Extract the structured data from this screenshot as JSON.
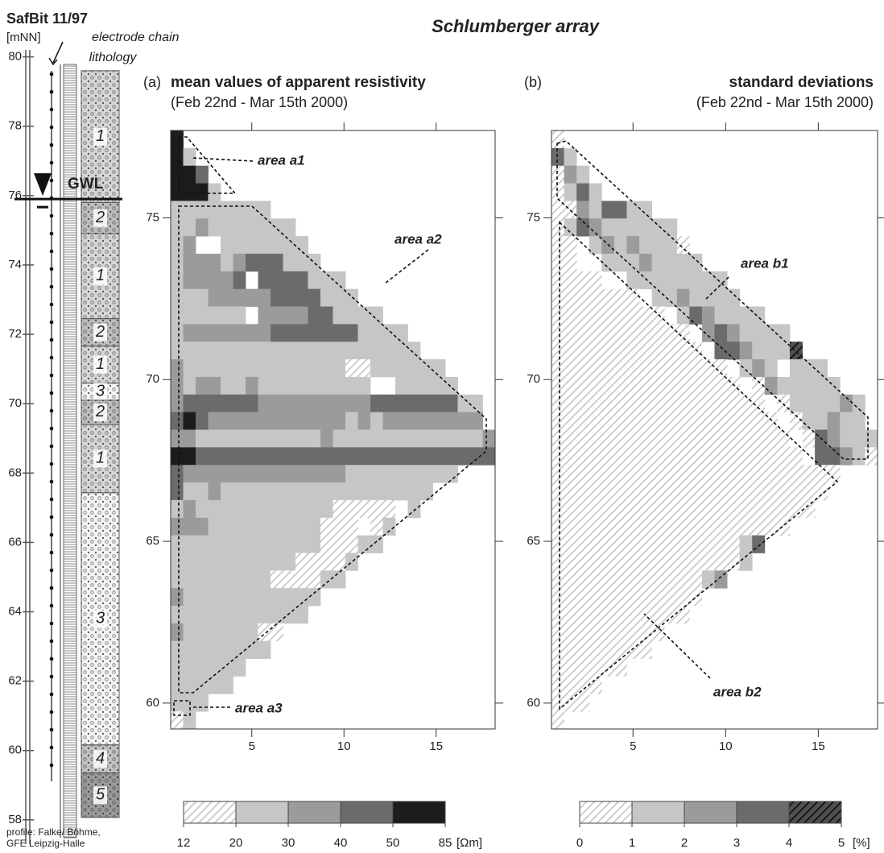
{
  "chart_data": {
    "type": "heatmap",
    "title": "Schlumberger array",
    "log": {
      "title": "SafBit 11/97",
      "unit": "[mNN]",
      "electrode_label": "electrode chain",
      "lithology_label": "lithology",
      "ylim": [
        57.3,
        80.2
      ],
      "yticks": [
        58,
        60,
        62,
        64,
        66,
        68,
        70,
        72,
        74,
        76,
        78,
        80
      ],
      "gwl": {
        "label": "GWL",
        "depth": 75.9
      },
      "layers": [
        {
          "label": "1",
          "top": 79.6,
          "bottom": 75.8,
          "color": "#d6d6d6"
        },
        {
          "label": "2",
          "top": 75.8,
          "bottom": 74.9,
          "color": "#bdbdbd"
        },
        {
          "label": "1",
          "top": 74.9,
          "bottom": 72.45,
          "color": "#d6d6d6"
        },
        {
          "label": "2",
          "top": 72.45,
          "bottom": 71.66,
          "color": "#bdbdbd"
        },
        {
          "label": "1",
          "top": 71.66,
          "bottom": 70.59,
          "color": "#d6d6d6"
        },
        {
          "label": "3",
          "top": 70.59,
          "bottom": 70.1,
          "color": "#f4f4f4"
        },
        {
          "label": "2",
          "top": 70.1,
          "bottom": 69.4,
          "color": "#bdbdbd"
        },
        {
          "label": "1",
          "top": 69.4,
          "bottom": 67.43,
          "color": "#d6d6d6"
        },
        {
          "label": "3",
          "top": 67.43,
          "bottom": 60.16,
          "color": "#f4f4f4"
        },
        {
          "label": "4",
          "top": 60.16,
          "bottom": 59.35,
          "color": "#c2c2c2"
        },
        {
          "label": "5",
          "top": 59.35,
          "bottom": 58.07,
          "color": "#9a9a9a"
        }
      ],
      "credit": [
        "profile: Falke/ Böhme,",
        "GFE Leipzig-Halle"
      ]
    },
    "panels": [
      {
        "label": "(a)",
        "title": "mean values of apparent resistivity",
        "subtitle": "(Feb 22nd - Mar 15th 2000)",
        "xlim": [
          0.6,
          18.2
        ],
        "xticks": [
          5,
          10,
          15
        ],
        "ylim": [
          59.2,
          77.7
        ],
        "yticks": [
          60,
          65,
          70,
          75
        ],
        "areas": [
          "area a1",
          "area a2",
          "area a3"
        ],
        "colorbar": {
          "ticks": [
            12,
            20,
            30,
            40,
            50,
            85
          ],
          "unit": "[Ωm]",
          "colors": [
            "#c8c8c8",
            "#c6c6c6",
            "#9b9b9b",
            "#6b6b6b",
            "#1c1c1c"
          ],
          "hatched": [
            true,
            false,
            false,
            false,
            false
          ]
        },
        "cells": [
          [
            4
          ],
          [
            4,
            1
          ],
          [
            4,
            4,
            3
          ],
          [
            4,
            4,
            4,
            1
          ],
          [
            1,
            1,
            1,
            1,
            1,
            1,
            1,
            1
          ],
          [
            1,
            1,
            2,
            1,
            1,
            1,
            1,
            1,
            1,
            1
          ],
          [
            1,
            2,
            null,
            null,
            1,
            1,
            1,
            1,
            1,
            1,
            1
          ],
          [
            1,
            2,
            2,
            2,
            1,
            2,
            3,
            3,
            3,
            1,
            1,
            1
          ],
          [
            1,
            2,
            2,
            2,
            2,
            3,
            null,
            3,
            3,
            3,
            3,
            1,
            1,
            1
          ],
          [
            1,
            1,
            1,
            2,
            2,
            2,
            2,
            2,
            3,
            3,
            3,
            3,
            1,
            1,
            1
          ],
          [
            1,
            1,
            1,
            1,
            1,
            1,
            null,
            2,
            2,
            2,
            2,
            3,
            3,
            1,
            1,
            1,
            1
          ],
          [
            1,
            2,
            2,
            2,
            2,
            2,
            2,
            2,
            3,
            3,
            3,
            3,
            3,
            3,
            3,
            1,
            1,
            1,
            1
          ],
          [
            1,
            1,
            1,
            1,
            1,
            1,
            1,
            1,
            1,
            1,
            1,
            1,
            1,
            1,
            1,
            1,
            1,
            1,
            1,
            1
          ],
          [
            2,
            1,
            1,
            1,
            1,
            1,
            1,
            1,
            1,
            1,
            1,
            1,
            1,
            1,
            0,
            0,
            1,
            1,
            1,
            1,
            1,
            1
          ],
          [
            2,
            1,
            2,
            2,
            1,
            1,
            2,
            1,
            1,
            1,
            1,
            1,
            1,
            1,
            1,
            1,
            null,
            null,
            1,
            1,
            1,
            1,
            1
          ],
          [
            2,
            3,
            3,
            3,
            3,
            3,
            3,
            2,
            2,
            2,
            2,
            2,
            2,
            2,
            2,
            2,
            3,
            3,
            3,
            3,
            3,
            3,
            3,
            1,
            1
          ],
          [
            3,
            4,
            3,
            2,
            2,
            2,
            2,
            2,
            2,
            2,
            2,
            2,
            2,
            2,
            1,
            2,
            1,
            2,
            2,
            2,
            2,
            2,
            2,
            2,
            2
          ],
          [
            2,
            2,
            1,
            1,
            1,
            1,
            1,
            1,
            1,
            1,
            1,
            1,
            2,
            1,
            1,
            1,
            1,
            1,
            1,
            1,
            1,
            1,
            1,
            1,
            1,
            2
          ],
          [
            4,
            4,
            3,
            3,
            3,
            3,
            3,
            3,
            3,
            3,
            3,
            3,
            3,
            3,
            3,
            3,
            3,
            3,
            3,
            3,
            3,
            3,
            3,
            3,
            3,
            3
          ],
          [
            3,
            2,
            2,
            2,
            2,
            2,
            2,
            2,
            2,
            2,
            2,
            2,
            2,
            2,
            1,
            1,
            1,
            1,
            1,
            1,
            1,
            1,
            1
          ],
          [
            3,
            1,
            1,
            2,
            1,
            1,
            1,
            1,
            1,
            1,
            1,
            1,
            1,
            1,
            1,
            1,
            1,
            1,
            1,
            1,
            1
          ],
          [
            1,
            2,
            1,
            1,
            1,
            1,
            1,
            1,
            1,
            1,
            1,
            1,
            1,
            0,
            0,
            0,
            0,
            0,
            null,
            1
          ],
          [
            2,
            2,
            2,
            1,
            1,
            1,
            1,
            1,
            1,
            1,
            1,
            1,
            0,
            0,
            0,
            null,
            0,
            1
          ],
          [
            1,
            1,
            1,
            1,
            1,
            1,
            1,
            1,
            1,
            1,
            1,
            1,
            0,
            0,
            0,
            1,
            1
          ],
          [
            1,
            1,
            1,
            1,
            1,
            1,
            1,
            1,
            1,
            1,
            0,
            0,
            0,
            0,
            1
          ],
          [
            1,
            1,
            1,
            1,
            1,
            1,
            1,
            1,
            0,
            0,
            0,
            0,
            1,
            1
          ],
          [
            2,
            1,
            1,
            1,
            1,
            1,
            1,
            1,
            1,
            1,
            1,
            1
          ],
          [
            1,
            1,
            1,
            1,
            1,
            1,
            1,
            1,
            1,
            1,
            1
          ],
          [
            2,
            1,
            1,
            1,
            1,
            1,
            1,
            0,
            0
          ],
          [
            1,
            1,
            1,
            1,
            1,
            1,
            1,
            1
          ],
          [
            1,
            1,
            1,
            1,
            1,
            1
          ],
          [
            1,
            1,
            1,
            1,
            1
          ],
          [
            1,
            1,
            1
          ],
          [
            0,
            1
          ]
        ]
      },
      {
        "label": "(b)",
        "title": "standard deviations",
        "subtitle": "(Feb 22nd - Mar 15th 2000)",
        "xlim": [
          0.6,
          18.2
        ],
        "xticks": [
          5,
          10,
          15
        ],
        "ylim": [
          59.2,
          77.7
        ],
        "yticks": [
          60,
          65,
          70,
          75
        ],
        "areas": [
          "area b1",
          "area b2"
        ],
        "colorbar": {
          "ticks": [
            0,
            1,
            2,
            3,
            4,
            5
          ],
          "unit": "[%]",
          "colors": [
            "#c8c8c8",
            "#c6c6c6",
            "#9b9b9b",
            "#6b6b6b",
            "#505050"
          ],
          "hatched": [
            true,
            false,
            false,
            false,
            true
          ]
        },
        "cells": [
          [
            0
          ],
          [
            3,
            1
          ],
          [
            0,
            2,
            1
          ],
          [
            0,
            1,
            3,
            1
          ],
          [
            0,
            0,
            2,
            1,
            3,
            3,
            1,
            1
          ],
          [
            0,
            1,
            3,
            2,
            1,
            1,
            1,
            1,
            1,
            1
          ],
          [
            0,
            0,
            null,
            1,
            2,
            1,
            2,
            1,
            1,
            1,
            0
          ],
          [
            0,
            0,
            null,
            null,
            1,
            1,
            1,
            2,
            1,
            1,
            1,
            1
          ],
          [
            0,
            0,
            0,
            0,
            null,
            null,
            1,
            1,
            1,
            1,
            1,
            1,
            1,
            1
          ],
          [
            0,
            0,
            0,
            0,
            0,
            0,
            0,
            null,
            1,
            1,
            2,
            1,
            1,
            1,
            1
          ],
          [
            0,
            0,
            0,
            0,
            0,
            0,
            0,
            0,
            0,
            null,
            1,
            3,
            2,
            1,
            1,
            1,
            1
          ],
          [
            0,
            0,
            0,
            0,
            0,
            0,
            0,
            0,
            0,
            0,
            0,
            null,
            2,
            3,
            2,
            1,
            1,
            1,
            1
          ],
          [
            0,
            0,
            0,
            0,
            0,
            0,
            0,
            0,
            0,
            0,
            0,
            0,
            null,
            3,
            3,
            2,
            1,
            1,
            1,
            4
          ],
          [
            0,
            0,
            0,
            0,
            0,
            0,
            0,
            0,
            0,
            0,
            0,
            0,
            0,
            0,
            null,
            1,
            2,
            1,
            null,
            1,
            1,
            1
          ],
          [
            0,
            0,
            0,
            0,
            0,
            0,
            0,
            0,
            0,
            0,
            0,
            0,
            0,
            0,
            0,
            null,
            0,
            2,
            1,
            1,
            1,
            1,
            1
          ],
          [
            0,
            0,
            0,
            0,
            0,
            0,
            0,
            0,
            0,
            0,
            0,
            0,
            0,
            0,
            0,
            0,
            0,
            null,
            0,
            1,
            1,
            1,
            1,
            2,
            1
          ],
          [
            0,
            0,
            0,
            0,
            0,
            0,
            0,
            0,
            0,
            0,
            0,
            0,
            0,
            0,
            0,
            0,
            0,
            0,
            null,
            0,
            1,
            1,
            2,
            1,
            1
          ],
          [
            0,
            0,
            0,
            0,
            0,
            0,
            0,
            0,
            0,
            0,
            0,
            0,
            0,
            0,
            0,
            0,
            0,
            0,
            0,
            null,
            0,
            3,
            2,
            1,
            1,
            1
          ],
          [
            0,
            0,
            0,
            0,
            0,
            0,
            0,
            0,
            0,
            0,
            0,
            0,
            0,
            0,
            0,
            0,
            0,
            0,
            0,
            0,
            null,
            3,
            3,
            2,
            1,
            0
          ],
          [
            0,
            0,
            0,
            0,
            0,
            0,
            0,
            0,
            0,
            0,
            0,
            0,
            0,
            0,
            0,
            0,
            0,
            0,
            0,
            0,
            0,
            0,
            0
          ],
          [
            0,
            0,
            0,
            0,
            0,
            0,
            0,
            0,
            0,
            0,
            0,
            0,
            0,
            0,
            0,
            0,
            0,
            0,
            0,
            0,
            0,
            0
          ],
          [
            0,
            0,
            0,
            0,
            0,
            0,
            0,
            0,
            0,
            0,
            0,
            0,
            0,
            0,
            0,
            0,
            0,
            0,
            0,
            0,
            0
          ],
          [
            0,
            0,
            0,
            0,
            0,
            0,
            0,
            0,
            0,
            0,
            0,
            0,
            0,
            0,
            0,
            0,
            0,
            0,
            0
          ],
          [
            0,
            0,
            0,
            0,
            0,
            0,
            0,
            0,
            0,
            0,
            0,
            0,
            0,
            0,
            0,
            1,
            3
          ],
          [
            0,
            0,
            0,
            0,
            0,
            0,
            0,
            0,
            0,
            0,
            0,
            0,
            0,
            0,
            0,
            1
          ],
          [
            0,
            0,
            0,
            0,
            0,
            0,
            0,
            0,
            0,
            0,
            0,
            0,
            1,
            2
          ],
          [
            0,
            0,
            0,
            0,
            0,
            0,
            0,
            0,
            0,
            0,
            0,
            0
          ],
          [
            0,
            0,
            0,
            0,
            0,
            0,
            0,
            0,
            0,
            0,
            0
          ],
          [
            0,
            0,
            0,
            0,
            0,
            0,
            0,
            0,
            0
          ],
          [
            0,
            0,
            0,
            0,
            0,
            0,
            0,
            0
          ],
          [
            0,
            0,
            0,
            0,
            0,
            0
          ],
          [
            0,
            0,
            0,
            0
          ],
          [
            0,
            0,
            0
          ],
          [
            0
          ]
        ]
      }
    ]
  }
}
